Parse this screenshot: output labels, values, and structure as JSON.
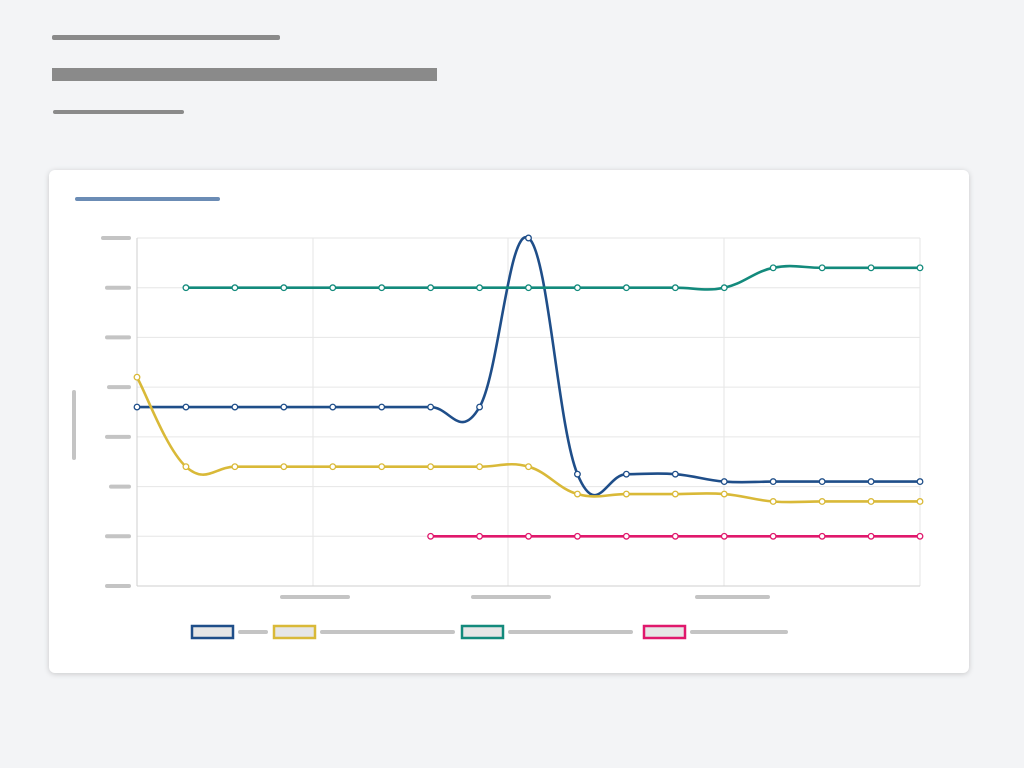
{
  "header": {
    "overline": "",
    "title": "",
    "subtitle": ""
  },
  "card": {
    "title": ""
  },
  "colors": {
    "grid": "#e6e6e6",
    "axis": "#cfcfcf",
    "tick_placeholder": "#c4c4c4",
    "legend_swatch_fill": "#e6e6e6"
  },
  "chart_data": {
    "type": "line",
    "title": "",
    "xlabel": "",
    "ylabel": "",
    "x": [
      0,
      1,
      2,
      3,
      4,
      5,
      6,
      7,
      8,
      9,
      10,
      11,
      12,
      13,
      14,
      15,
      16
    ],
    "ylim": [
      0,
      7
    ],
    "yticks": [
      "",
      "",
      "",
      "",
      "",
      "",
      "",
      ""
    ],
    "xticks": [
      "",
      "",
      ""
    ],
    "grid": true,
    "legend_position": "bottom",
    "series": [
      {
        "name": "",
        "color": "#1f4e89",
        "values": [
          3.6,
          3.6,
          3.6,
          3.6,
          3.6,
          3.6,
          3.6,
          3.6,
          7.0,
          2.25,
          2.25,
          2.25,
          2.1,
          2.1,
          2.1,
          2.1,
          2.1
        ]
      },
      {
        "name": "",
        "color": "#d9b938",
        "values": [
          4.2,
          2.4,
          2.4,
          2.4,
          2.4,
          2.4,
          2.4,
          2.4,
          2.4,
          1.85,
          1.85,
          1.85,
          1.85,
          1.7,
          1.7,
          1.7,
          1.7
        ]
      },
      {
        "name": "",
        "color": "#138a7c",
        "values": [
          null,
          6.0,
          6.0,
          6.0,
          6.0,
          6.0,
          6.0,
          6.0,
          6.0,
          6.0,
          6.0,
          6.0,
          6.0,
          6.4,
          6.4,
          6.4,
          6.4
        ]
      },
      {
        "name": "",
        "color": "#e0186c",
        "values": [
          null,
          null,
          null,
          null,
          null,
          null,
          1.0,
          1.0,
          1.0,
          1.0,
          1.0,
          1.0,
          1.0,
          1.0,
          1.0,
          1.0,
          1.0
        ]
      }
    ]
  }
}
